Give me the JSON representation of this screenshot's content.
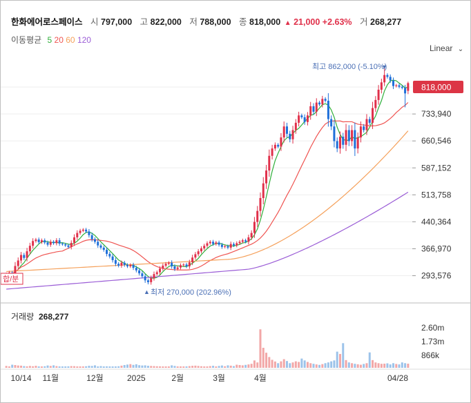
{
  "header": {
    "name": "한화에어로스페이스",
    "open_label": "시",
    "open": "797,000",
    "high_label": "고",
    "high": "822,000",
    "low_label": "저",
    "low": "788,000",
    "close_label": "종",
    "close": "818,000",
    "change_arrow": "▲",
    "change": "21,000",
    "change_pct": "+2.63%",
    "volume_label": "거",
    "volume": "268,277"
  },
  "ma": {
    "label": "이동평균",
    "items": [
      {
        "period": "5",
        "color": "#2faf3a"
      },
      {
        "period": "20",
        "color": "#ef5350"
      },
      {
        "period": "60",
        "color": "#f5a05a"
      },
      {
        "period": "120",
        "color": "#9a5cd6"
      }
    ]
  },
  "scale_mode": "Linear",
  "volume_panel": {
    "label": "거래량",
    "value": "268,277",
    "ticks": [
      "2.60m",
      "1.73m",
      "866k"
    ]
  },
  "price_axis": {
    "ticks": [
      "733,940",
      "660,546",
      "587,152",
      "513,758",
      "440,364",
      "366,970",
      "293,576"
    ],
    "current": "818,000"
  },
  "x_axis": {
    "ticks": [
      "10/14",
      "11월",
      "12월",
      "2025",
      "2월",
      "3월",
      "4월",
      "04/28"
    ]
  },
  "annotations": {
    "high_label": "최고 862,000 (-5.10%)",
    "low_label": "최저 270,000 (202.96%)",
    "left_tag": "합/분"
  },
  "colors": {
    "up": "#e0304a",
    "down": "#1e6fd9",
    "ma5": "#2faf3a",
    "ma20": "#ef5350",
    "ma60": "#f5a05a",
    "ma120": "#9a5cd6",
    "badge": "#dc3545",
    "annotation": "#4a6fb5"
  },
  "chart_data": {
    "type": "candlestick",
    "title": "한화에어로스페이스",
    "y_range": [
      257000,
      862000
    ],
    "volume_range": [
      0,
      2600000
    ],
    "x_ticks": [
      "10/14",
      "11월",
      "12월",
      "2025",
      "2월",
      "3월",
      "4월",
      "04/28"
    ],
    "last": {
      "open": 797000,
      "high": 822000,
      "low": 788000,
      "close": 818000,
      "change": 21000,
      "change_pct": 2.63,
      "volume": 268277
    },
    "max": {
      "value": 862000,
      "pct_from_current": -5.1
    },
    "min": {
      "value": 270000,
      "pct_from_min": 202.96
    },
    "close_series": [
      297000,
      302000,
      298000,
      320000,
      335000,
      350000,
      342000,
      360000,
      375000,
      388000,
      392000,
      385000,
      390000,
      384000,
      378000,
      386000,
      382000,
      390000,
      381000,
      379000,
      376000,
      372000,
      383000,
      398000,
      410000,
      416000,
      419000,
      414000,
      404000,
      393000,
      386000,
      376000,
      370000,
      364000,
      353000,
      346000,
      336000,
      326000,
      321000,
      329000,
      323000,
      319000,
      323000,
      315000,
      308000,
      300000,
      292000,
      281000,
      276000,
      287000,
      298000,
      303000,
      313000,
      321000,
      326000,
      329000,
      319000,
      312000,
      316000,
      322000,
      324000,
      319000,
      330000,
      343000,
      352000,
      360000,
      368000,
      375000,
      382000,
      386000,
      380000,
      384000,
      378000,
      372000,
      374000,
      370000,
      380000,
      376000,
      382000,
      386000,
      390000,
      386000,
      398000,
      410000,
      440000,
      470000,
      505000,
      545000,
      580000,
      620000,
      640000,
      650000,
      645000,
      670000,
      700000,
      680000,
      665000,
      690000,
      710000,
      730000,
      725000,
      712000,
      730000,
      755000,
      740000,
      765000,
      760000,
      775000,
      770000,
      720000,
      700000,
      660000,
      640000,
      672000,
      650000,
      690000,
      660000,
      690000,
      640000,
      670000,
      700000,
      690000,
      720000,
      710000,
      750000,
      772000,
      800000,
      820000,
      840000,
      835000,
      825000,
      810000,
      812000,
      808000,
      805000,
      790000,
      818000
    ],
    "volume_k": [
      120,
      90,
      200,
      180,
      150,
      140,
      110,
      95,
      120,
      100,
      130,
      90,
      80,
      100,
      150,
      120,
      160,
      110,
      90,
      80,
      70,
      95,
      110,
      105,
      80,
      75,
      90,
      100,
      130,
      120,
      160,
      90,
      110,
      85,
      95,
      80,
      75,
      90,
      100,
      140,
      180,
      210,
      240,
      190,
      230,
      170,
      150,
      160,
      130,
      120,
      110,
      100,
      95,
      80,
      85,
      70,
      160,
      120,
      90,
      80,
      70,
      90,
      110,
      130,
      140,
      120,
      100,
      90,
      80,
      110,
      130,
      90,
      120,
      150,
      100,
      160,
      140,
      110,
      200,
      180,
      160,
      190,
      220,
      260,
      480,
      350,
      2500,
      1300,
      980,
      700,
      520,
      410,
      300,
      420,
      560,
      440,
      300,
      350,
      420,
      380,
      600,
      480,
      380,
      300,
      260,
      220,
      190,
      240,
      300,
      350,
      420,
      480,
      1050,
      900,
      1600,
      500,
      350,
      300,
      260,
      230,
      200,
      250,
      300,
      1000,
      500,
      350,
      300,
      260,
      270,
      290,
      220,
      300,
      250,
      220,
      350,
      300,
      268
    ]
  }
}
